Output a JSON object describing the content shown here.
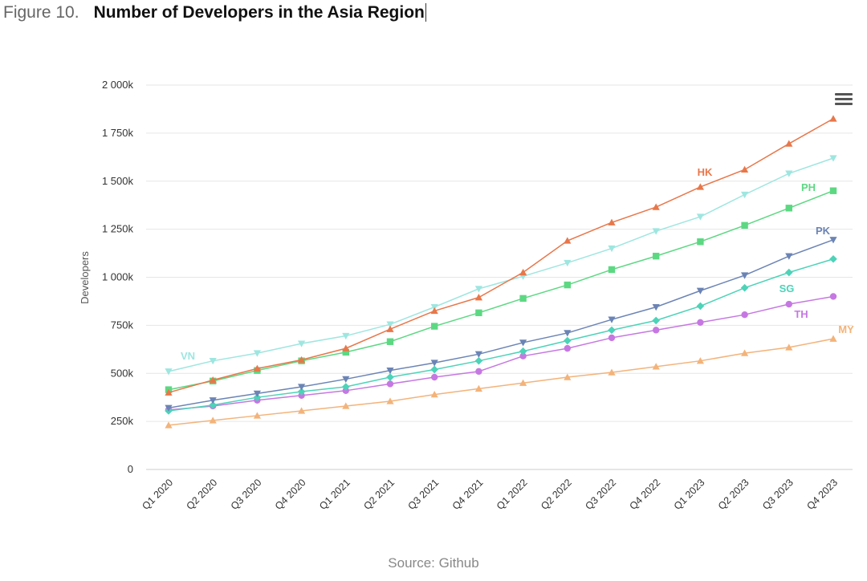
{
  "header": {
    "figure_number": "Figure 10.",
    "title": "Number of Developers in the Asia Region"
  },
  "source": "Source: Github",
  "chart_data": {
    "type": "line",
    "ylabel": "Developers",
    "xlabel": "",
    "ylim": [
      0,
      2000000
    ],
    "yticks": [
      {
        "value": 0,
        "label": "0"
      },
      {
        "value": 250000,
        "label": "250k"
      },
      {
        "value": 500000,
        "label": "500k"
      },
      {
        "value": 750000,
        "label": "750k"
      },
      {
        "value": 1000000,
        "label": "1 000k"
      },
      {
        "value": 1250000,
        "label": "1 250k"
      },
      {
        "value": 1500000,
        "label": "1 500k"
      },
      {
        "value": 1750000,
        "label": "1 750k"
      },
      {
        "value": 2000000,
        "label": "2 000k"
      }
    ],
    "grid": true,
    "categories": [
      "Q1 2020",
      "Q2 2020",
      "Q3 2020",
      "Q4 2020",
      "Q1 2021",
      "Q2 2021",
      "Q3 2021",
      "Q4 2021",
      "Q1 2022",
      "Q2 2022",
      "Q3 2022",
      "Q4 2022",
      "Q1 2023",
      "Q2 2023",
      "Q3 2023",
      "Q4 2023"
    ],
    "series": [
      {
        "name": "HK",
        "color": "#e8774a",
        "marker": "triangle-up",
        "values": [
          400000,
          465000,
          525000,
          570000,
          630000,
          730000,
          825000,
          895000,
          1025000,
          1190000,
          1285000,
          1365000,
          1470000,
          1560000,
          1695000,
          1825000
        ]
      },
      {
        "name": "VN",
        "color": "#9ee6e0",
        "marker": "triangle-down",
        "values": [
          510000,
          565000,
          605000,
          655000,
          695000,
          755000,
          845000,
          940000,
          1005000,
          1075000,
          1150000,
          1240000,
          1315000,
          1430000,
          1540000,
          1620000
        ]
      },
      {
        "name": "PH",
        "color": "#5cd882",
        "marker": "square",
        "values": [
          415000,
          460000,
          515000,
          565000,
          610000,
          665000,
          745000,
          815000,
          890000,
          960000,
          1040000,
          1110000,
          1185000,
          1270000,
          1360000,
          1450000
        ]
      },
      {
        "name": "PK",
        "color": "#6b84b5",
        "marker": "triangle-down",
        "values": [
          320000,
          360000,
          395000,
          430000,
          470000,
          515000,
          555000,
          600000,
          660000,
          710000,
          780000,
          845000,
          930000,
          1010000,
          1110000,
          1195000
        ]
      },
      {
        "name": "SG",
        "color": "#4cd3b8",
        "marker": "diamond",
        "values": [
          305000,
          335000,
          375000,
          405000,
          430000,
          480000,
          520000,
          565000,
          615000,
          670000,
          725000,
          775000,
          850000,
          945000,
          1025000,
          1095000
        ]
      },
      {
        "name": "TH",
        "color": "#c678e2",
        "marker": "circle",
        "values": [
          310000,
          330000,
          360000,
          385000,
          410000,
          445000,
          480000,
          510000,
          590000,
          630000,
          685000,
          725000,
          765000,
          805000,
          860000,
          900000
        ]
      },
      {
        "name": "MY",
        "color": "#f3b37a",
        "marker": "triangle-up",
        "values": [
          230000,
          255000,
          280000,
          305000,
          330000,
          355000,
          390000,
          420000,
          450000,
          480000,
          505000,
          535000,
          565000,
          605000,
          635000,
          680000
        ]
      }
    ]
  }
}
